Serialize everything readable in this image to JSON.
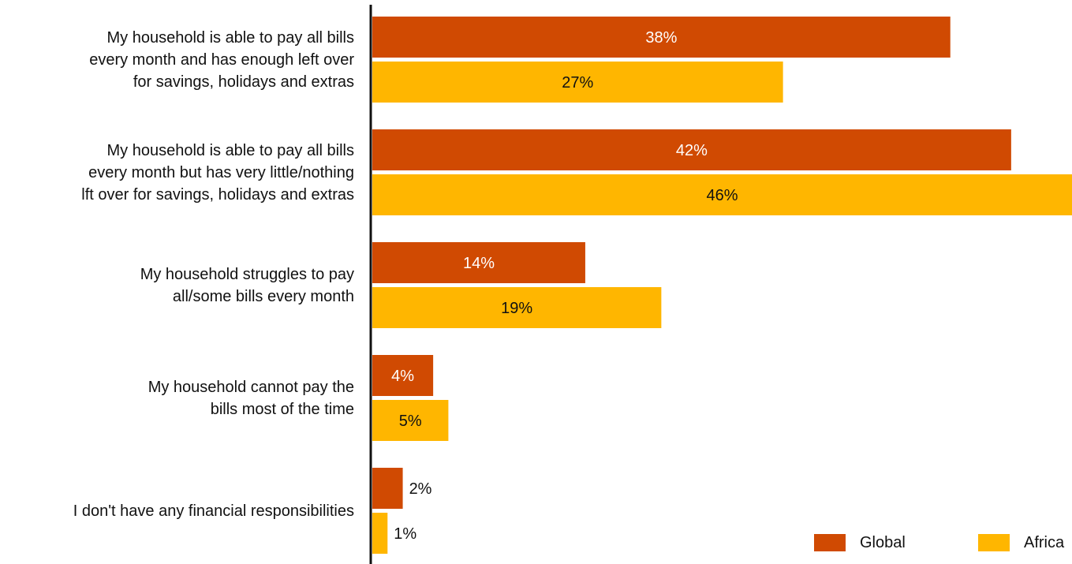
{
  "chart_data": {
    "type": "bar",
    "orientation": "horizontal",
    "categories": [
      "My household is able to pay all bills\nevery month and has enough left over\nfor savings, holidays and extras",
      "My household is able to pay all bills\nevery month but has very little/nothing\nlft over for savings, holidays and extras",
      "My household struggles to pay\nall/some bills every month",
      "My household cannot pay the\nbills most of the time",
      "I don't have any financial responsibilities"
    ],
    "series": [
      {
        "name": "Global",
        "color": "#D04A02",
        "values": [
          38,
          42,
          14,
          4,
          2
        ],
        "labels": [
          "38%",
          "42%",
          "14%",
          "4%",
          "2%"
        ]
      },
      {
        "name": "Africa",
        "color": "#FFB600",
        "values": [
          27,
          46,
          19,
          5,
          1
        ],
        "labels": [
          "27%",
          "46%",
          "19%",
          "5%",
          "1%"
        ]
      }
    ],
    "xlim": [
      0,
      46
    ],
    "legend_position": "bottom-right",
    "grid": false,
    "title": "",
    "xlabel": "",
    "ylabel": ""
  }
}
